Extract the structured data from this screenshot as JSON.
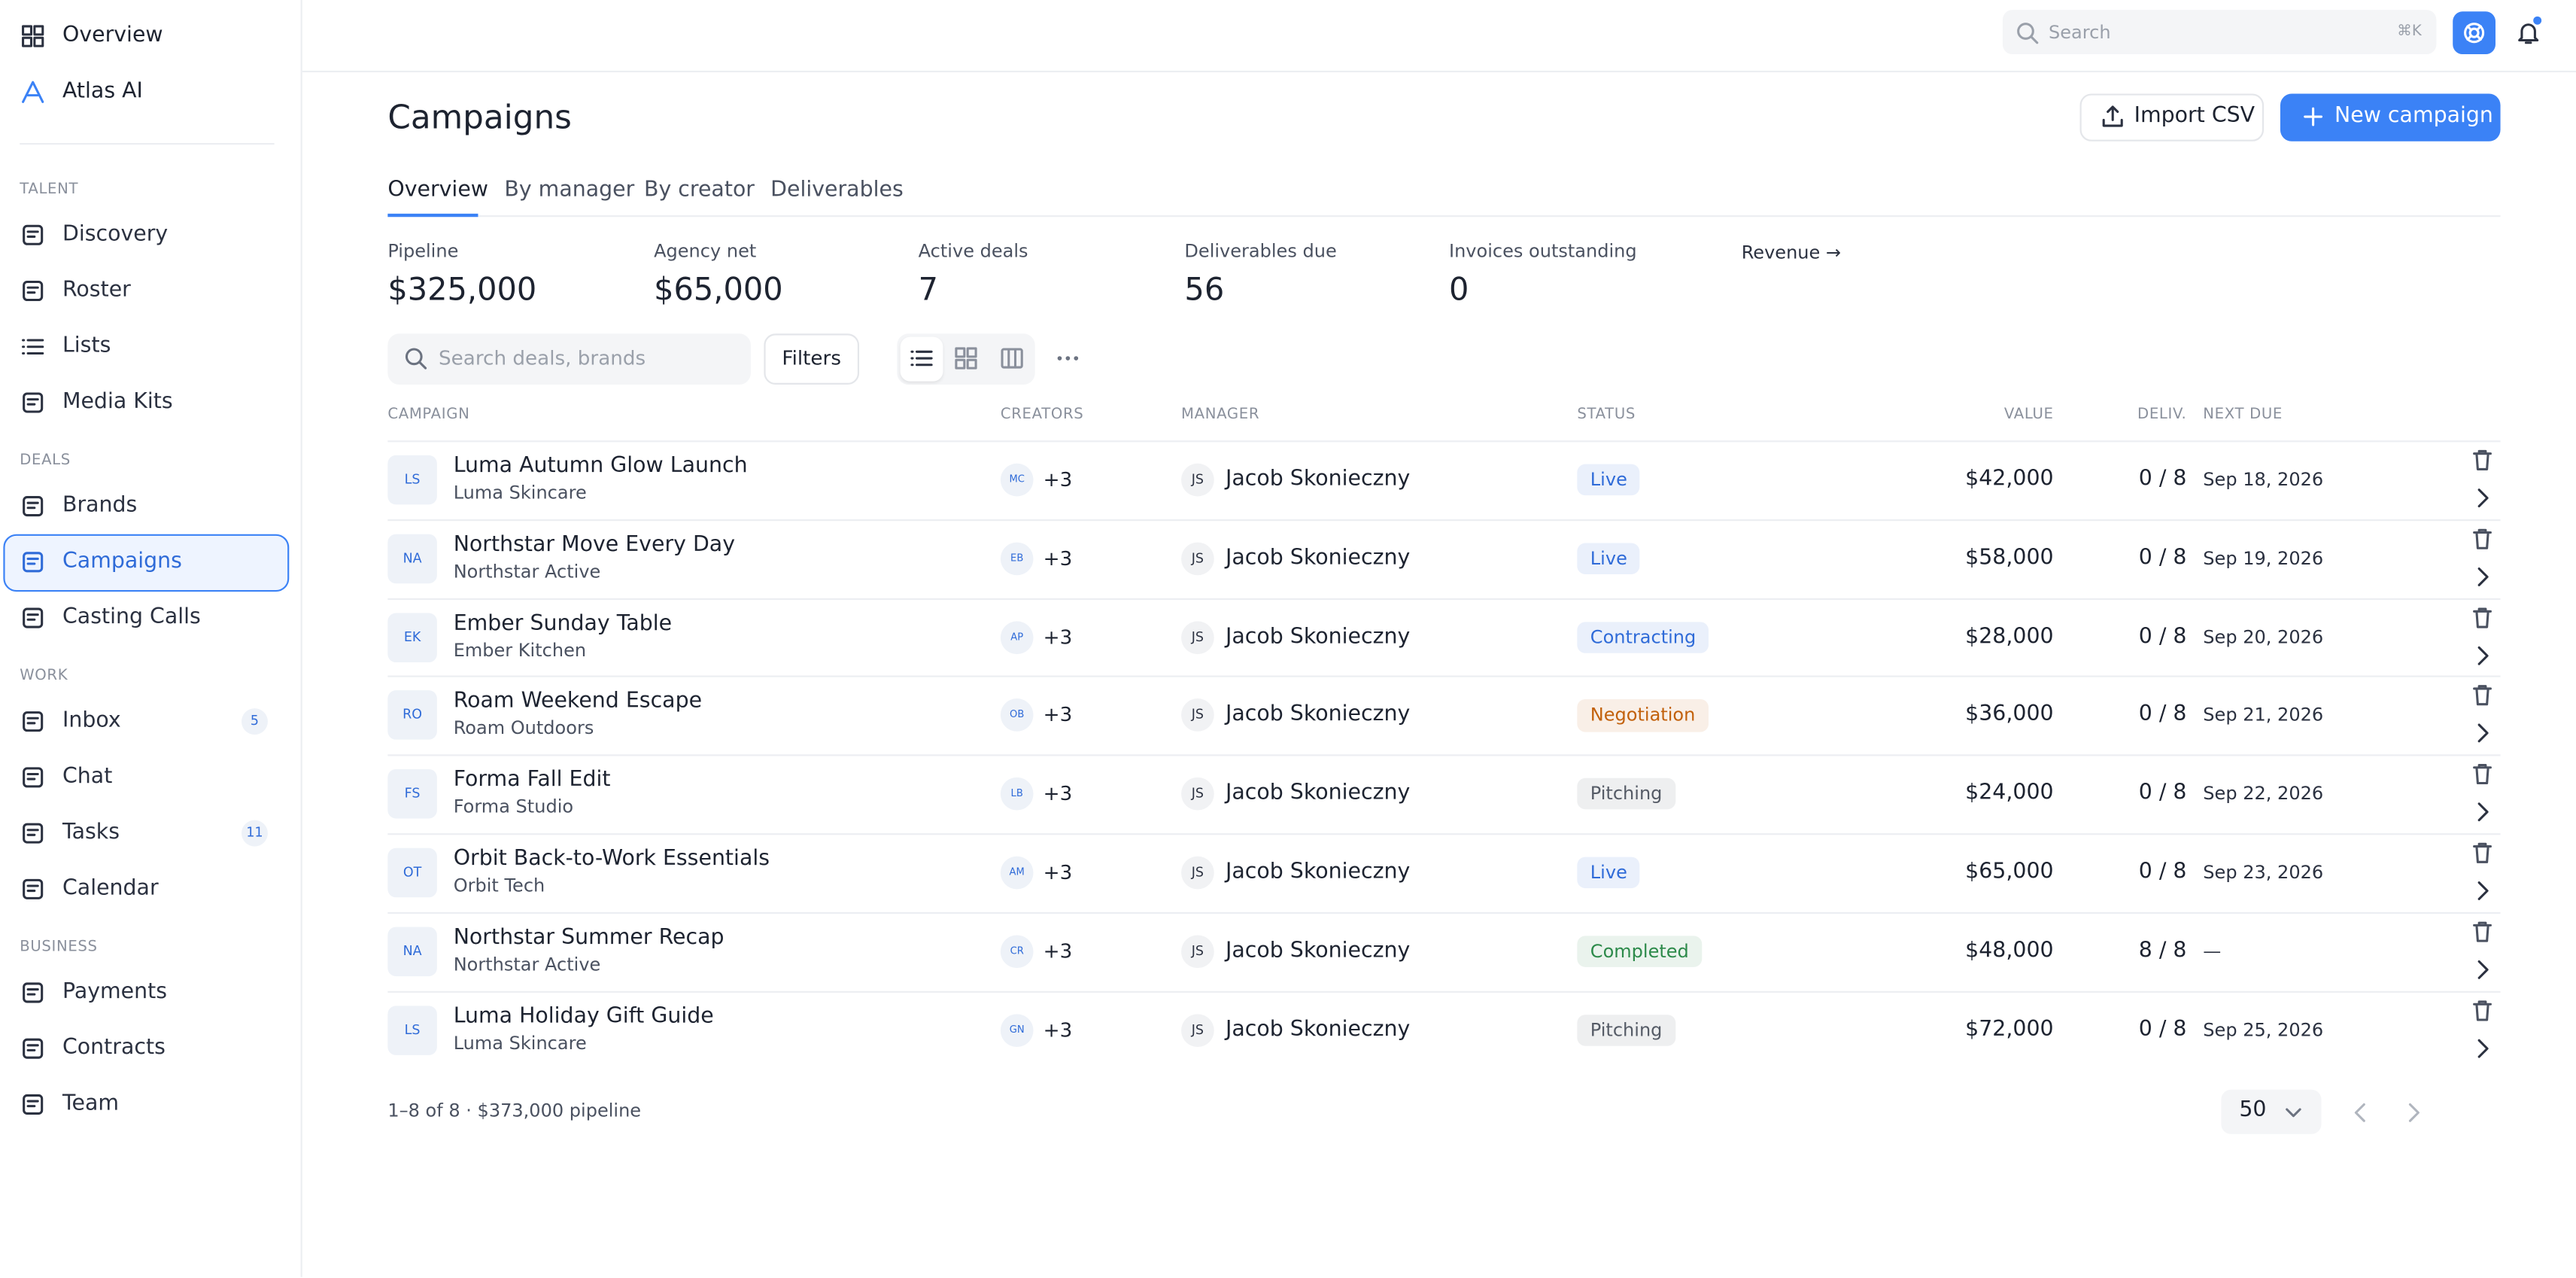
{
  "sidebar": {
    "top": [
      "Overview",
      "Atlas AI"
    ],
    "sections": [
      {
        "title": "TALENT",
        "items": [
          {
            "label": "Discovery"
          },
          {
            "label": "Roster"
          },
          {
            "label": "Lists"
          },
          {
            "label": "Media Kits"
          }
        ]
      },
      {
        "title": "DEALS",
        "items": [
          {
            "label": "Brands"
          },
          {
            "label": "Campaigns",
            "selected": true
          },
          {
            "label": "Casting Calls"
          }
        ]
      },
      {
        "title": "WORK",
        "items": [
          {
            "label": "Inbox",
            "badge": 5
          },
          {
            "label": "Chat"
          },
          {
            "label": "Tasks",
            "badge": 11
          },
          {
            "label": "Calendar"
          }
        ]
      },
      {
        "title": "BUSINESS",
        "items": [
          {
            "label": "Payments"
          },
          {
            "label": "Contracts"
          },
          {
            "label": "Team"
          }
        ]
      }
    ]
  },
  "topbar": {
    "search_placeholder": "Search",
    "shortcut": "⌘K"
  },
  "header": {
    "title": "Campaigns",
    "import_button": "Import CSV",
    "new_button": "New campaign"
  },
  "tabs": [
    "Overview",
    "By manager",
    "By creator",
    "Deliverables"
  ],
  "stats": [
    {
      "label": "Pipeline",
      "value": "$325,000"
    },
    {
      "label": "Agency net",
      "value": "$65,000"
    },
    {
      "label": "Active deals",
      "value": "7"
    },
    {
      "label": "Deliverables due",
      "value": "56"
    },
    {
      "label": "Invoices outstanding",
      "value": "0"
    }
  ],
  "revenue_link": "Revenue →",
  "toolbar": {
    "search_placeholder": "Search deals, brands",
    "filters": "Filters"
  },
  "table": {
    "columns": [
      "CAMPAIGN",
      "CREATORS",
      "MANAGER",
      "STATUS",
      "VALUE",
      "DELIV.",
      "NEXT DUE"
    ],
    "rows": [
      {
        "initials": "LS",
        "name": "Luma Autumn Glow Launch",
        "brand": "Luma Skincare",
        "creator": "MC",
        "extra": "+3",
        "manager_initials": "JS",
        "manager": "Jacob Skonieczny",
        "status": "Live",
        "status_color": "#2f6bd8",
        "value": "$42,000",
        "deliverables": "0 / 8",
        "next_due": "Sep 18, 2026"
      },
      {
        "initials": "NA",
        "name": "Northstar Move Every Day",
        "brand": "Northstar Active",
        "creator": "EB",
        "extra": "+3",
        "manager_initials": "JS",
        "manager": "Jacob Skonieczny",
        "status": "Live",
        "status_color": "#2f6bd8",
        "value": "$58,000",
        "deliverables": "0 / 8",
        "next_due": "Sep 19, 2026"
      },
      {
        "initials": "EK",
        "name": "Ember Sunday Table",
        "brand": "Ember Kitchen",
        "creator": "AP",
        "extra": "+3",
        "manager_initials": "JS",
        "manager": "Jacob Skonieczny",
        "status": "Contracting",
        "status_color": "#2f6bd8",
        "value": "$28,000",
        "deliverables": "0 / 8",
        "next_due": "Sep 20, 2026"
      },
      {
        "initials": "RO",
        "name": "Roam Weekend Escape",
        "brand": "Roam Outdoors",
        "creator": "OB",
        "extra": "+3",
        "manager_initials": "JS",
        "manager": "Jacob Skonieczny",
        "status": "Negotiation",
        "status_color": "#c2610c",
        "value": "$36,000",
        "deliverables": "0 / 8",
        "next_due": "Sep 21, 2026"
      },
      {
        "initials": "FS",
        "name": "Forma Fall Edit",
        "brand": "Forma Studio",
        "creator": "LB",
        "extra": "+3",
        "manager_initials": "JS",
        "manager": "Jacob Skonieczny",
        "status": "Pitching",
        "status_color": "#555b66",
        "value": "$24,000",
        "deliverables": "0 / 8",
        "next_due": "Sep 22, 2026"
      },
      {
        "initials": "OT",
        "name": "Orbit Back-to-Work Essentials",
        "brand": "Orbit Tech",
        "creator": "AM",
        "extra": "+3",
        "manager_initials": "JS",
        "manager": "Jacob Skonieczny",
        "status": "Live",
        "status_color": "#2f6bd8",
        "value": "$65,000",
        "deliverables": "0 / 8",
        "next_due": "Sep 23, 2026"
      },
      {
        "initials": "NA",
        "name": "Northstar Summer Recap",
        "brand": "Northstar Active",
        "creator": "CR",
        "extra": "+3",
        "manager_initials": "JS",
        "manager": "Jacob Skonieczny",
        "status": "Completed",
        "status_color": "#2c8a4a",
        "value": "$48,000",
        "deliverables": "8 / 8",
        "next_due": "—"
      },
      {
        "initials": "LS",
        "name": "Luma Holiday Gift Guide",
        "brand": "Luma Skincare",
        "creator": "GN",
        "extra": "+3",
        "manager_initials": "JS",
        "manager": "Jacob Skonieczny",
        "status": "Pitching",
        "status_color": "#555b66",
        "value": "$72,000",
        "deliverables": "0 / 8",
        "next_due": "Sep 25, 2026"
      }
    ]
  },
  "footer": {
    "summary": "1–8 of 8 · $373,000 pipeline",
    "page_size": "50"
  }
}
